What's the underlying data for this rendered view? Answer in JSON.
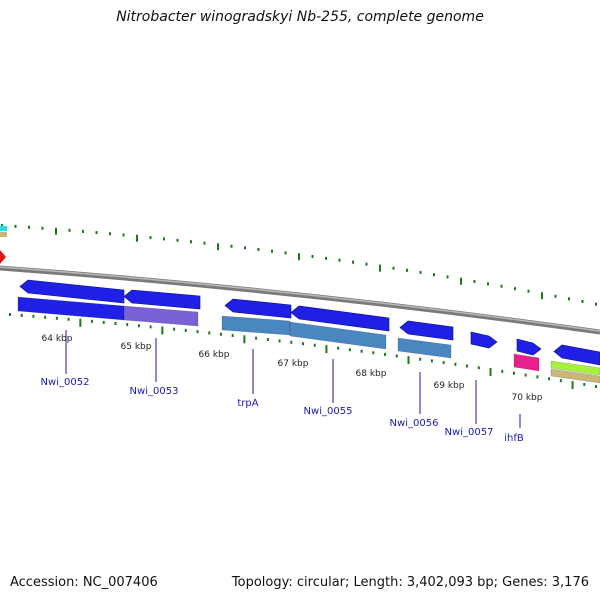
{
  "title": "Nitrobacter winogradskyi Nb-255, complete genome",
  "footer": {
    "accession": "Accession: NC_007406",
    "summary": "Topology: circular; Length: 3,402,093 bp; Genes: 3,176"
  },
  "colors": {
    "background": "#ffffff",
    "backbone": "#8c8c8c",
    "tick": "#1a7a1a",
    "gene_label": "#1a1aa8",
    "forward_gene": "#1f1fe6",
    "reverse_gene": "#1f1fe6",
    "cds_steelblue": "#4a86c0",
    "cds_purple": "#7a62d6",
    "cds_pink": "#e8208c",
    "cds_lime": "#a8f040",
    "cds_tan": "#c8b878",
    "cds_cyan": "#20e0f0",
    "marker_red": "#e01818"
  },
  "ruler": {
    "labels": [
      "64 kbp",
      "65 kbp",
      "66 kbp",
      "67 kbp",
      "68 kbp",
      "69 kbp",
      "70 kbp"
    ]
  },
  "genes": [
    {
      "name": "Nwi_0052"
    },
    {
      "name": "Nwi_0053"
    },
    {
      "name": "trpA"
    },
    {
      "name": "Nwi_0055"
    },
    {
      "name": "Nwi_0056"
    },
    {
      "name": "Nwi_0057"
    },
    {
      "name": "ihfB"
    }
  ]
}
